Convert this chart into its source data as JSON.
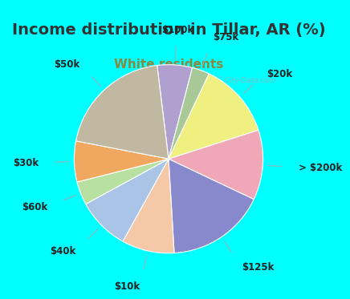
{
  "title": "Income distribution in Tillar, AR (%)",
  "subtitle": "White residents",
  "title_fontsize": 14,
  "subtitle_fontsize": 11,
  "title_color": "#333333",
  "subtitle_color": "#888840",
  "bg_cyan": "#00ffff",
  "chart_bg_color": "#e8f5ee",
  "watermark": "City-Data.com",
  "slices": [
    {
      "label": "$100k",
      "value": 6,
      "color": "#b0a0d0"
    },
    {
      "label": "$75k",
      "value": 3,
      "color": "#a8c898"
    },
    {
      "label": "$20k",
      "value": 13,
      "color": "#f0f080"
    },
    {
      "label": "> $200k",
      "value": 12,
      "color": "#f0a8b8"
    },
    {
      "label": "$125k",
      "value": 17,
      "color": "#8888cc"
    },
    {
      "label": "$10k",
      "value": 9,
      "color": "#f5c8a8"
    },
    {
      "label": "$40k",
      "value": 9,
      "color": "#aac4e8"
    },
    {
      "label": "$60k",
      "value": 4,
      "color": "#b8e0a0"
    },
    {
      "label": "$30k",
      "value": 7,
      "color": "#f0a860"
    },
    {
      "label": "$50k",
      "value": 20,
      "color": "#c0b8a0"
    }
  ],
  "label_fontsize": 8.5,
  "label_color": "#222222",
  "start_angle": 97
}
